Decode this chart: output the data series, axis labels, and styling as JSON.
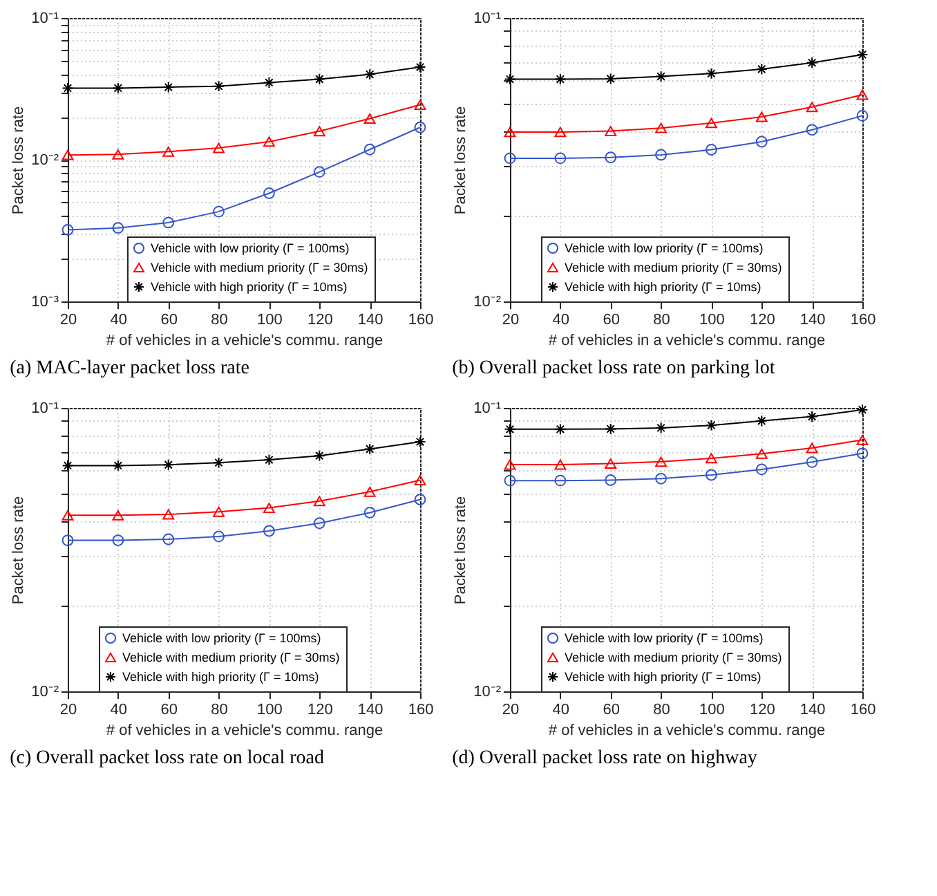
{
  "chart_data": [
    {
      "type": "line",
      "title": "(a) MAC-layer packet loss rate",
      "xlabel": "# of vehicles in a vehicle's commu. range",
      "ylabel": "Packet loss rate",
      "x": [
        20,
        40,
        60,
        80,
        100,
        120,
        140,
        160
      ],
      "xlim": [
        20,
        160
      ],
      "xticks": [
        20,
        40,
        60,
        80,
        100,
        120,
        140,
        160
      ],
      "ylim": [
        0.001,
        0.1
      ],
      "yticks": [
        {
          "value": 0.001,
          "label": "10⁻³"
        },
        {
          "value": 0.002,
          "label": null
        },
        {
          "value": 0.003,
          "label": null
        },
        {
          "value": 0.004,
          "label": null
        },
        {
          "value": 0.005,
          "label": null
        },
        {
          "value": 0.006,
          "label": null
        },
        {
          "value": 0.007,
          "label": null
        },
        {
          "value": 0.008,
          "label": null
        },
        {
          "value": 0.009,
          "label": null
        },
        {
          "value": 0.01,
          "label": "10⁻²"
        },
        {
          "value": 0.02,
          "label": null
        },
        {
          "value": 0.03,
          "label": null
        },
        {
          "value": 0.04,
          "label": null
        },
        {
          "value": 0.05,
          "label": null
        },
        {
          "value": 0.06,
          "label": null
        },
        {
          "value": 0.07,
          "label": null
        },
        {
          "value": 0.08,
          "label": null
        },
        {
          "value": 0.09,
          "label": null
        },
        {
          "value": 0.1,
          "label": "10⁻¹"
        }
      ],
      "log": "y",
      "grid": true,
      "legend": "bottom right",
      "line_style": "solid",
      "series": [
        {
          "name": "Vehicle with low priority (Γ = 100ms)",
          "color": "#3355cc",
          "marker": "circle",
          "values": [
            0.0032,
            0.0033,
            0.0036,
            0.0043,
            0.0058,
            0.0082,
            0.0118,
            0.0169
          ]
        },
        {
          "name": "Vehicle with medium priority (Γ = 30ms)",
          "color": "#ff0000",
          "marker": "triangle",
          "values": [
            0.0108,
            0.0109,
            0.0114,
            0.0121,
            0.0134,
            0.0159,
            0.0195,
            0.0244
          ]
        },
        {
          "name": "Vehicle with high priority (Γ = 10ms)",
          "color": "#000000",
          "marker": "cross",
          "values": [
            0.032,
            0.032,
            0.0325,
            0.033,
            0.035,
            0.037,
            0.04,
            0.045
          ]
        }
      ]
    },
    {
      "type": "line",
      "title": "(b) Overall packet loss rate on parking lot",
      "xlabel": "# of vehicles in a vehicle's commu. range",
      "ylabel": "Packet loss rate",
      "x": [
        20,
        40,
        60,
        80,
        100,
        120,
        140,
        160
      ],
      "xlim": [
        20,
        160
      ],
      "xticks": [
        20,
        40,
        60,
        80,
        100,
        120,
        140,
        160
      ],
      "ylim": [
        0.01,
        0.1
      ],
      "yticks": [
        {
          "value": 0.01,
          "label": "10⁻²"
        },
        {
          "value": 0.02,
          "label": null
        },
        {
          "value": 0.03,
          "label": null
        },
        {
          "value": 0.04,
          "label": null
        },
        {
          "value": 0.05,
          "label": null
        },
        {
          "value": 0.06,
          "label": null
        },
        {
          "value": 0.07,
          "label": null
        },
        {
          "value": 0.08,
          "label": null
        },
        {
          "value": 0.09,
          "label": null
        },
        {
          "value": 0.1,
          "label": "10⁻¹"
        }
      ],
      "log": "y",
      "grid": true,
      "legend": "bottom",
      "line_style": "solid",
      "series": [
        {
          "name": "Vehicle with low priority (Γ = 100ms)",
          "color": "#3355cc",
          "marker": "circle",
          "values": [
            0.032,
            0.032,
            0.0322,
            0.0329,
            0.0343,
            0.0366,
            0.0403,
            0.0452
          ]
        },
        {
          "name": "Vehicle with medium priority (Γ = 30ms)",
          "color": "#ff0000",
          "marker": "triangle",
          "values": [
            0.0396,
            0.0396,
            0.0399,
            0.0409,
            0.0426,
            0.0448,
            0.0485,
            0.0536
          ]
        },
        {
          "name": "Vehicle with high priority (Γ = 10ms)",
          "color": "#000000",
          "marker": "cross",
          "values": [
            0.0608,
            0.0608,
            0.061,
            0.0622,
            0.0637,
            0.066,
            0.0695,
            0.0743
          ]
        }
      ]
    },
    {
      "type": "line",
      "title": "(c) Overall packet loss rate on local road",
      "xlabel": "# of vehicles in a vehicle's commu. range",
      "ylabel": "Packet loss rate",
      "x": [
        20,
        40,
        60,
        80,
        100,
        120,
        140,
        160
      ],
      "xlim": [
        20,
        160
      ],
      "xticks": [
        20,
        40,
        60,
        80,
        100,
        120,
        140,
        160
      ],
      "ylim": [
        0.01,
        0.1
      ],
      "yticks": [
        {
          "value": 0.01,
          "label": "10⁻²"
        },
        {
          "value": 0.02,
          "label": null
        },
        {
          "value": 0.03,
          "label": null
        },
        {
          "value": 0.04,
          "label": null
        },
        {
          "value": 0.05,
          "label": null
        },
        {
          "value": 0.06,
          "label": null
        },
        {
          "value": 0.07,
          "label": null
        },
        {
          "value": 0.08,
          "label": null
        },
        {
          "value": 0.09,
          "label": null
        },
        {
          "value": 0.1,
          "label": "10⁻¹"
        }
      ],
      "log": "y",
      "grid": true,
      "legend": "bottom",
      "line_style": "solid",
      "series": [
        {
          "name": "Vehicle with low priority (Γ = 100ms)",
          "color": "#3355cc",
          "marker": "circle",
          "values": [
            0.0341,
            0.0341,
            0.0344,
            0.0352,
            0.0368,
            0.0392,
            0.0427,
            0.0475
          ]
        },
        {
          "name": "Vehicle with medium priority (Γ = 30ms)",
          "color": "#ff0000",
          "marker": "triangle",
          "values": [
            0.0418,
            0.0418,
            0.0421,
            0.043,
            0.0444,
            0.0469,
            0.0506,
            0.0556
          ]
        },
        {
          "name": "Vehicle with high priority (Γ = 10ms)",
          "color": "#000000",
          "marker": "cross",
          "values": [
            0.0626,
            0.0626,
            0.063,
            0.0641,
            0.0656,
            0.0678,
            0.0716,
            0.0759
          ]
        }
      ]
    },
    {
      "type": "line",
      "title": "(d) Overall packet loss rate on highway",
      "xlabel": "# of vehicles in a vehicle's commu. range",
      "ylabel": "Packet loss rate",
      "x": [
        20,
        40,
        60,
        80,
        100,
        120,
        140,
        160
      ],
      "xlim": [
        20,
        160
      ],
      "xticks": [
        20,
        40,
        60,
        80,
        100,
        120,
        140,
        160
      ],
      "ylim": [
        0.01,
        0.1
      ],
      "yticks": [
        {
          "value": 0.01,
          "label": "10⁻²"
        },
        {
          "value": 0.02,
          "label": null
        },
        {
          "value": 0.03,
          "label": null
        },
        {
          "value": 0.04,
          "label": null
        },
        {
          "value": 0.05,
          "label": null
        },
        {
          "value": 0.06,
          "label": null
        },
        {
          "value": 0.07,
          "label": null
        },
        {
          "value": 0.08,
          "label": null
        },
        {
          "value": 0.09,
          "label": null
        },
        {
          "value": 0.1,
          "label": "10⁻¹"
        }
      ],
      "log": "y",
      "grid": true,
      "legend": "bottom",
      "line_style": "solid",
      "series": [
        {
          "name": "Vehicle with low priority (Γ = 100ms)",
          "color": "#3355cc",
          "marker": "circle",
          "values": [
            0.0554,
            0.0554,
            0.0556,
            0.0563,
            0.058,
            0.0607,
            0.0644,
            0.0691
          ]
        },
        {
          "name": "Vehicle with medium priority (Γ = 30ms)",
          "color": "#ff0000",
          "marker": "triangle",
          "values": [
            0.0631,
            0.0631,
            0.0636,
            0.0646,
            0.0664,
            0.0689,
            0.0722,
            0.0771
          ]
        },
        {
          "name": "Vehicle with high priority (Γ = 10ms)",
          "color": "#000000",
          "marker": "cross",
          "values": [
            0.0841,
            0.0841,
            0.0843,
            0.085,
            0.0868,
            0.09,
            0.0932,
            0.0985
          ]
        }
      ]
    }
  ]
}
